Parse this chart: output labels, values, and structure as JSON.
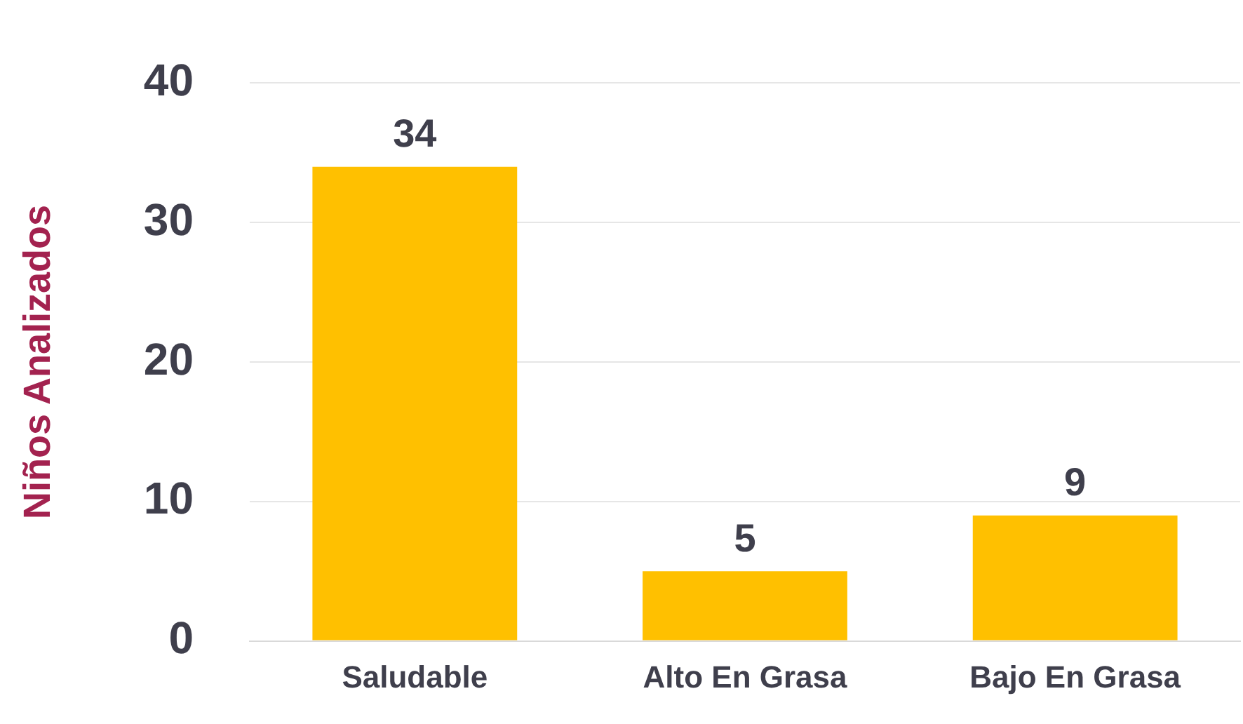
{
  "chart_data": {
    "type": "bar",
    "ylabel": "Niños Analizados",
    "categories": [
      "Saludable",
      "Alto En Grasa",
      "Bajo En Grasa"
    ],
    "values": [
      34,
      5,
      9
    ],
    "color": "#ffc000",
    "ylim": [
      0,
      40
    ],
    "yticks": [
      0,
      10,
      20,
      30,
      40
    ],
    "grid": "y",
    "data_labels": true,
    "legend": false
  }
}
